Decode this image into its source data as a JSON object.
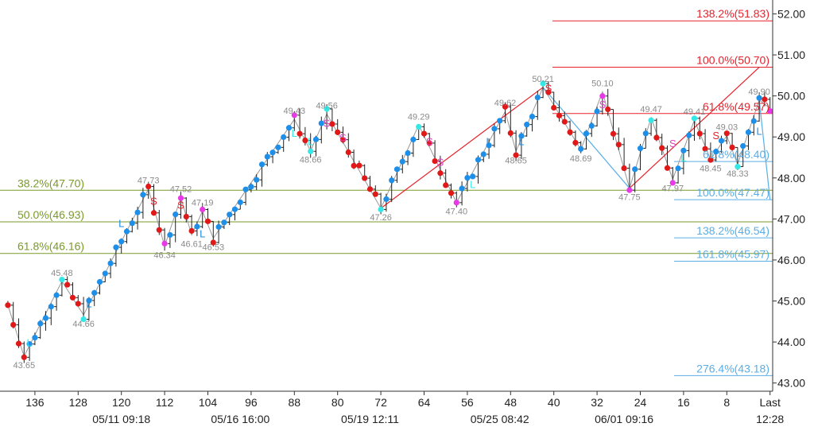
{
  "chart_data": {
    "type": "candlestick",
    "y_range": [
      42.8,
      52.3
    ],
    "x_range": [
      142,
      -5
    ],
    "y_ticks": [
      "43.00",
      "44.00",
      "45.00",
      "46.00",
      "47.00",
      "48.00",
      "49.00",
      "50.00",
      "51.00",
      "52.00"
    ],
    "x_ticks": [
      {
        "label": "136",
        "x": 136
      },
      {
        "label": "128",
        "x": 128
      },
      {
        "label": "120",
        "x": 120
      },
      {
        "label": "112",
        "x": 112
      },
      {
        "label": "104",
        "x": 104
      },
      {
        "label": "96",
        "x": 96
      },
      {
        "label": "88",
        "x": 88
      },
      {
        "label": "80",
        "x": 80
      },
      {
        "label": "72",
        "x": 72
      },
      {
        "label": "64",
        "x": 64
      },
      {
        "label": "56",
        "x": 56
      },
      {
        "label": "48",
        "x": 48
      },
      {
        "label": "40",
        "x": 40
      },
      {
        "label": "32",
        "x": 32
      },
      {
        "label": "24",
        "x": 24
      },
      {
        "label": "16",
        "x": 16
      },
      {
        "label": "8",
        "x": 8
      },
      {
        "label": "Last",
        "x": 0
      }
    ],
    "date_labels": [
      {
        "label": "05/11 09:18",
        "x": 120
      },
      {
        "label": "05/16 16:00",
        "x": 98
      },
      {
        "label": "05/19 12:11",
        "x": 74
      },
      {
        "label": "05/25 08:42",
        "x": 50
      },
      {
        "label": "06/01 09:16",
        "x": 27
      },
      {
        "label": "12:28",
        "x": 0
      }
    ],
    "fib_levels": [
      {
        "label": "38.2%(47.70)",
        "value": 47.7,
        "group": "green"
      },
      {
        "label": "50.0%(46.93)",
        "value": 46.93,
        "group": "green"
      },
      {
        "label": "61.8%(46.16)",
        "value": 46.16,
        "group": "green"
      },
      {
        "label": "138.2%(51.83)",
        "value": 51.83,
        "group": "red"
      },
      {
        "label": "100.0%(50.70)",
        "value": 50.7,
        "group": "red"
      },
      {
        "label": "61.8%(49.57)",
        "value": 49.57,
        "group": "red"
      },
      {
        "label": "61.8%(48.40)",
        "value": 48.4,
        "group": "blue"
      },
      {
        "label": "100.0%(47.47)",
        "value": 47.47,
        "group": "blue"
      },
      {
        "label": "138.2%(46.54)",
        "value": 46.54,
        "group": "blue"
      },
      {
        "label": "161.8%(45.97)",
        "value": 45.97,
        "group": "blue"
      },
      {
        "label": "276.4%(43.18)",
        "value": 43.18,
        "group": "blue"
      }
    ],
    "swing_points": [
      {
        "x": 141,
        "value": 44.9
      },
      {
        "x": 138,
        "value": 43.65,
        "label": "43.65"
      },
      {
        "x": 131,
        "value": 45.48,
        "label": "45.48"
      },
      {
        "x": 127,
        "value": 44.66,
        "label": "44.66"
      },
      {
        "x": 115,
        "value": 47.73,
        "label": "47.73"
      },
      {
        "x": 112,
        "value": 46.34,
        "label": "46.34"
      },
      {
        "x": 109,
        "value": 47.52,
        "label": "47.52"
      },
      {
        "x": 107,
        "value": 46.61,
        "label": "46.61"
      },
      {
        "x": 105,
        "value": 47.19,
        "label": "47.19"
      },
      {
        "x": 103,
        "value": 46.53,
        "label": "46.53"
      },
      {
        "x": 88,
        "value": 49.43,
        "label": "49.43"
      },
      {
        "x": 85,
        "value": 48.66,
        "label": "48.66"
      },
      {
        "x": 82,
        "value": 49.56,
        "label": "49.56"
      },
      {
        "x": 72,
        "value": 47.26,
        "label": "47.26"
      },
      {
        "x": 65,
        "value": 49.29,
        "label": "49.29"
      },
      {
        "x": 58,
        "value": 47.4,
        "label": "47.40"
      },
      {
        "x": 49,
        "value": 49.62,
        "label": "49.62"
      },
      {
        "x": 47,
        "value": 48.65,
        "label": "48.65"
      },
      {
        "x": 42,
        "value": 50.21,
        "label": "50.21"
      },
      {
        "x": 35,
        "value": 48.69,
        "label": "48.69"
      },
      {
        "x": 31,
        "value": 50.1,
        "label": "50.10"
      },
      {
        "x": 26,
        "value": 47.75,
        "label": "47.75"
      },
      {
        "x": 22,
        "value": 49.47,
        "label": "49.47"
      },
      {
        "x": 18,
        "value": 47.97,
        "label": "47.97"
      },
      {
        "x": 14,
        "value": 49.41,
        "label": "49.41"
      },
      {
        "x": 11,
        "value": 48.45,
        "label": "48.45"
      },
      {
        "x": 8,
        "value": 49.03,
        "label": "49.03"
      },
      {
        "x": 6,
        "value": 48.33,
        "label": "48.33"
      },
      {
        "x": 2,
        "value": 49.9,
        "label": "49.90"
      },
      {
        "x": 0,
        "value": 49.7
      }
    ],
    "signal_markers": [
      {
        "text": "L",
        "x": 137,
        "value": 43.9,
        "color": "cyan"
      },
      {
        "text": "L",
        "x": 126,
        "value": 44.85,
        "color": "blue"
      },
      {
        "text": "L",
        "x": 120,
        "value": 46.8,
        "color": "blue"
      },
      {
        "text": "S",
        "x": 114,
        "value": 47.35,
        "color": "red"
      },
      {
        "text": "S",
        "x": 109,
        "value": 47.25,
        "color": "red"
      },
      {
        "text": "L",
        "x": 105,
        "value": 46.55,
        "color": "blue"
      },
      {
        "text": "L",
        "x": 88,
        "value": 49.0,
        "color": "cyan"
      },
      {
        "text": "S",
        "x": 82,
        "value": 49.25,
        "color": "pink"
      },
      {
        "text": "L",
        "x": 85,
        "value": 48.8,
        "color": "cyan"
      },
      {
        "text": "S",
        "x": 79,
        "value": 48.9,
        "color": "pink"
      },
      {
        "text": "S",
        "x": 63,
        "value": 48.8,
        "color": "pink"
      },
      {
        "text": "S",
        "x": 61,
        "value": 48.3,
        "color": "pink"
      },
      {
        "text": "L",
        "x": 55,
        "value": 47.75,
        "color": "cyan"
      },
      {
        "text": "L",
        "x": 52,
        "value": 48.8,
        "color": "blue"
      },
      {
        "text": "L",
        "x": 46,
        "value": 48.8,
        "color": "blue"
      },
      {
        "text": "S",
        "x": 41,
        "value": 50.1,
        "color": "red"
      },
      {
        "text": "S",
        "x": 31,
        "value": 49.7,
        "color": "pink"
      },
      {
        "text": "S",
        "x": 18,
        "value": 48.75,
        "color": "pink"
      },
      {
        "text": "L",
        "x": 16,
        "value": 48.4,
        "color": "cyan"
      },
      {
        "text": "S",
        "x": 10,
        "value": 48.95,
        "color": "red"
      },
      {
        "text": "L",
        "x": 2,
        "value": 49.05,
        "color": "blue"
      }
    ],
    "trend_lines": [
      {
        "color": "red",
        "points": [
          [
            72,
            47.26
          ],
          [
            42,
            50.21
          ]
        ]
      },
      {
        "color": "red",
        "points": [
          [
            26,
            47.75
          ],
          [
            2,
            50.7
          ]
        ]
      },
      {
        "color": "blue",
        "points": [
          [
            42,
            50.21
          ],
          [
            26,
            47.75
          ]
        ]
      },
      {
        "color": "blue",
        "points": [
          [
            2,
            49.9
          ],
          [
            0,
            47.47
          ]
        ]
      }
    ],
    "colors": {
      "green": "#7a9a2a",
      "red": "#e8212b",
      "blue": "#5aaee6",
      "dot_blue": "#1e8fe8",
      "dot_cyan": "#34e8e8",
      "dot_magenta": "#e838e8",
      "dot_red": "#e01818",
      "pink": "#e040c0",
      "candle": "#222222",
      "swing_line": "#999999",
      "axis": "#333333",
      "label_grey": "#8a8a8a"
    }
  }
}
